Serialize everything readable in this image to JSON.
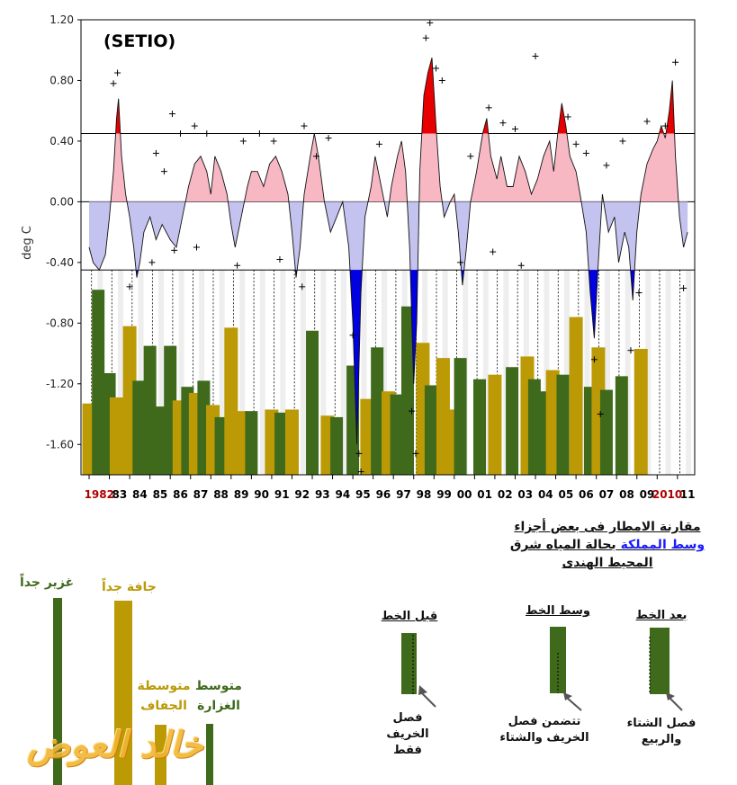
{
  "colors": {
    "dry": "#bb9a06",
    "wet": "#3f6a1c",
    "strong_warm": "#e80000",
    "warm_fill": "#f7b8c4",
    "cool_fill": "#c4c2ee",
    "strong_cool": "#0000e0"
  },
  "chart_data": {
    "type": "bar+line",
    "title": "(SETIO)",
    "ylabel": "deg C",
    "ylim": [
      -1.8,
      1.2
    ],
    "yticks": [
      "1.20",
      "0.80",
      "0.40",
      "0.00",
      "-0.40",
      "-0.80",
      "-1.20",
      "-1.60"
    ],
    "thresholds": [
      0.45,
      0.0,
      -0.45
    ],
    "xlabels": [
      {
        "label": "1982",
        "year": 1982,
        "color": "#b00000"
      },
      {
        "label": "83",
        "year": 1983
      },
      {
        "label": "84",
        "year": 1984
      },
      {
        "label": "85",
        "year": 1985
      },
      {
        "label": "86",
        "year": 1986
      },
      {
        "label": "87",
        "year": 1987
      },
      {
        "label": "88",
        "year": 1988
      },
      {
        "label": "89",
        "year": 1989
      },
      {
        "label": "90",
        "year": 1990
      },
      {
        "label": "91",
        "year": 1991
      },
      {
        "label": "92",
        "year": 1992
      },
      {
        "label": "93",
        "year": 1993
      },
      {
        "label": "94",
        "year": 1994
      },
      {
        "label": "95",
        "year": 1995
      },
      {
        "label": "96",
        "year": 1996
      },
      {
        "label": "97",
        "year": 1997
      },
      {
        "label": "98",
        "year": 1998
      },
      {
        "label": "99",
        "year": 1999
      },
      {
        "label": "00",
        "year": 2000
      },
      {
        "label": "01",
        "year": 2001
      },
      {
        "label": "02",
        "year": 2002
      },
      {
        "label": "03",
        "year": 2003
      },
      {
        "label": "04",
        "year": 2004
      },
      {
        "label": "05",
        "year": 2005
      },
      {
        "label": "06",
        "year": 2006
      },
      {
        "label": "07",
        "year": 2007
      },
      {
        "label": "08",
        "year": 2008
      },
      {
        "label": "09",
        "year": 2009
      },
      {
        "label": "2010",
        "year": 2010,
        "color": "#b00000"
      },
      {
        "label": "11",
        "year": 2011
      }
    ],
    "sst_index": [
      [
        1982.0,
        -0.3
      ],
      [
        1982.2,
        -0.4
      ],
      [
        1982.5,
        -0.45
      ],
      [
        1982.8,
        -0.35
      ],
      [
        1983.0,
        -0.1
      ],
      [
        1983.2,
        0.2
      ],
      [
        1983.35,
        0.55
      ],
      [
        1983.45,
        0.68
      ],
      [
        1983.6,
        0.3
      ],
      [
        1983.8,
        0.05
      ],
      [
        1984.0,
        -0.1
      ],
      [
        1984.2,
        -0.3
      ],
      [
        1984.35,
        -0.5
      ],
      [
        1984.5,
        -0.4
      ],
      [
        1984.7,
        -0.2
      ],
      [
        1985.0,
        -0.1
      ],
      [
        1985.3,
        -0.25
      ],
      [
        1985.6,
        -0.15
      ],
      [
        1986.0,
        -0.25
      ],
      [
        1986.3,
        -0.3
      ],
      [
        1986.6,
        -0.1
      ],
      [
        1986.9,
        0.1
      ],
      [
        1987.2,
        0.25
      ],
      [
        1987.5,
        0.3
      ],
      [
        1987.8,
        0.2
      ],
      [
        1988.0,
        0.05
      ],
      [
        1988.2,
        0.3
      ],
      [
        1988.5,
        0.2
      ],
      [
        1988.8,
        0.05
      ],
      [
        1989.0,
        -0.15
      ],
      [
        1989.2,
        -0.3
      ],
      [
        1989.5,
        -0.1
      ],
      [
        1989.8,
        0.1
      ],
      [
        1990.0,
        0.2
      ],
      [
        1990.3,
        0.2
      ],
      [
        1990.6,
        0.1
      ],
      [
        1990.9,
        0.25
      ],
      [
        1991.2,
        0.3
      ],
      [
        1991.5,
        0.2
      ],
      [
        1991.8,
        0.05
      ],
      [
        1992.0,
        -0.2
      ],
      [
        1992.2,
        -0.5
      ],
      [
        1992.4,
        -0.3
      ],
      [
        1992.6,
        0.05
      ],
      [
        1992.9,
        0.3
      ],
      [
        1993.1,
        0.45
      ],
      [
        1993.3,
        0.3
      ],
      [
        1993.6,
        0.0
      ],
      [
        1993.9,
        -0.2
      ],
      [
        1994.2,
        -0.1
      ],
      [
        1994.5,
        0.0
      ],
      [
        1994.8,
        -0.3
      ],
      [
        1995.0,
        -0.8
      ],
      [
        1995.2,
        -1.6
      ],
      [
        1995.4,
        -0.6
      ],
      [
        1995.6,
        -0.1
      ],
      [
        1995.9,
        0.1
      ],
      [
        1996.1,
        0.3
      ],
      [
        1996.4,
        0.1
      ],
      [
        1996.7,
        -0.1
      ],
      [
        1996.9,
        0.1
      ],
      [
        1997.2,
        0.3
      ],
      [
        1997.4,
        0.4
      ],
      [
        1997.6,
        0.2
      ],
      [
        1997.8,
        -0.3
      ],
      [
        1998.0,
        -1.2
      ],
      [
        1998.15,
        -0.8
      ],
      [
        1998.3,
        0.2
      ],
      [
        1998.5,
        0.7
      ],
      [
        1998.7,
        0.85
      ],
      [
        1998.9,
        0.95
      ],
      [
        1999.1,
        0.5
      ],
      [
        1999.3,
        0.1
      ],
      [
        1999.5,
        -0.1
      ],
      [
        1999.8,
        0.0
      ],
      [
        2000.0,
        0.05
      ],
      [
        2000.2,
        -0.2
      ],
      [
        2000.4,
        -0.55
      ],
      [
        2000.6,
        -0.3
      ],
      [
        2000.8,
        0.0
      ],
      [
        2001.1,
        0.2
      ],
      [
        2001.4,
        0.45
      ],
      [
        2001.6,
        0.55
      ],
      [
        2001.8,
        0.3
      ],
      [
        2002.1,
        0.15
      ],
      [
        2002.3,
        0.3
      ],
      [
        2002.6,
        0.1
      ],
      [
        2002.9,
        0.1
      ],
      [
        2003.2,
        0.3
      ],
      [
        2003.5,
        0.2
      ],
      [
        2003.8,
        0.05
      ],
      [
        2004.1,
        0.15
      ],
      [
        2004.4,
        0.3
      ],
      [
        2004.7,
        0.4
      ],
      [
        2004.9,
        0.2
      ],
      [
        2005.1,
        0.45
      ],
      [
        2005.3,
        0.65
      ],
      [
        2005.5,
        0.5
      ],
      [
        2005.7,
        0.3
      ],
      [
        2006.0,
        0.2
      ],
      [
        2006.2,
        0.05
      ],
      [
        2006.5,
        -0.2
      ],
      [
        2006.7,
        -0.6
      ],
      [
        2006.9,
        -0.9
      ],
      [
        2007.1,
        -0.4
      ],
      [
        2007.3,
        0.05
      ],
      [
        2007.6,
        -0.2
      ],
      [
        2007.9,
        -0.1
      ],
      [
        2008.1,
        -0.4
      ],
      [
        2008.4,
        -0.2
      ],
      [
        2008.6,
        -0.3
      ],
      [
        2008.8,
        -0.65
      ],
      [
        2009.0,
        -0.2
      ],
      [
        2009.2,
        0.05
      ],
      [
        2009.5,
        0.25
      ],
      [
        2009.8,
        0.35
      ],
      [
        2010.0,
        0.4
      ],
      [
        2010.2,
        0.5
      ],
      [
        2010.4,
        0.42
      ],
      [
        2010.6,
        0.6
      ],
      [
        2010.75,
        0.8
      ],
      [
        2010.9,
        0.3
      ],
      [
        2011.1,
        -0.1
      ],
      [
        2011.3,
        -0.3
      ],
      [
        2011.5,
        -0.2
      ]
    ],
    "rain_bars": [
      {
        "year": 1982,
        "class": "dry",
        "value": -1.33
      },
      {
        "year": 1982.45,
        "class": "wet",
        "value": -0.58
      },
      {
        "year": 1983,
        "class": "wet",
        "value": -1.13
      },
      {
        "year": 1983.35,
        "class": "dry",
        "value": -1.29
      },
      {
        "year": 1984,
        "class": "dry",
        "value": -0.82
      },
      {
        "year": 1984.45,
        "class": "wet",
        "value": -1.18
      },
      {
        "year": 1985,
        "class": "wet",
        "value": -0.95
      },
      {
        "year": 1985.6,
        "class": "wet",
        "value": -1.35
      },
      {
        "year": 1986,
        "class": "wet",
        "value": -0.95
      },
      {
        "year": 1986.45,
        "class": "dry",
        "value": -1.31
      },
      {
        "year": 1986.85,
        "class": "wet",
        "value": -1.22
      },
      {
        "year": 1987.25,
        "class": "dry",
        "value": -1.26
      },
      {
        "year": 1987.65,
        "class": "wet",
        "value": -1.18
      },
      {
        "year": 1988.1,
        "class": "dry",
        "value": -1.34
      },
      {
        "year": 1988.5,
        "class": "wet",
        "value": -1.42
      },
      {
        "year": 1989,
        "class": "dry",
        "value": -0.83
      },
      {
        "year": 1989.45,
        "class": "dry",
        "value": -1.38
      },
      {
        "year": 1990,
        "class": "wet",
        "value": -1.38
      },
      {
        "year": 1991,
        "class": "dry",
        "value": -1.37
      },
      {
        "year": 1991.45,
        "class": "wet",
        "value": -1.39
      },
      {
        "year": 1992,
        "class": "dry",
        "value": -1.37
      },
      {
        "year": 1993,
        "class": "wet",
        "value": -0.85
      },
      {
        "year": 1993.75,
        "class": "dry",
        "value": -1.41
      },
      {
        "year": 1994.2,
        "class": "wet",
        "value": -1.42
      },
      {
        "year": 1995,
        "class": "wet",
        "value": -1.08
      },
      {
        "year": 1995.7,
        "class": "dry",
        "value": -1.3
      },
      {
        "year": 1996.2,
        "class": "wet",
        "value": -0.96
      },
      {
        "year": 1996.75,
        "class": "dry",
        "value": -1.25
      },
      {
        "year": 1997.15,
        "class": "wet",
        "value": -1.27
      },
      {
        "year": 1997.7,
        "class": "wet",
        "value": -0.69
      },
      {
        "year": 1998.45,
        "class": "dry",
        "value": -0.93
      },
      {
        "year": 1998.85,
        "class": "wet",
        "value": -1.21
      },
      {
        "year": 1999.45,
        "class": "dry",
        "value": -1.03
      },
      {
        "year": 1999.85,
        "class": "dry",
        "value": -1.37
      },
      {
        "year": 2000.3,
        "class": "wet",
        "value": -1.03
      },
      {
        "year": 2001.25,
        "class": "wet",
        "value": -1.17
      },
      {
        "year": 2002,
        "class": "dry",
        "value": -1.14
      },
      {
        "year": 2002.85,
        "class": "wet",
        "value": -1.09
      },
      {
        "year": 2003.6,
        "class": "dry",
        "value": -1.02
      },
      {
        "year": 2003.95,
        "class": "wet",
        "value": -1.17
      },
      {
        "year": 2004.55,
        "class": "wet",
        "value": -1.25
      },
      {
        "year": 2004.85,
        "class": "dry",
        "value": -1.11
      },
      {
        "year": 2005.35,
        "class": "wet",
        "value": -1.14
      },
      {
        "year": 2006,
        "class": "dry",
        "value": -0.76
      },
      {
        "year": 2006.7,
        "class": "wet",
        "value": -1.22
      },
      {
        "year": 2007.1,
        "class": "dry",
        "value": -0.96
      },
      {
        "year": 2007.5,
        "class": "wet",
        "value": -1.24
      },
      {
        "year": 2008.25,
        "class": "wet",
        "value": -1.15
      },
      {
        "year": 2009.2,
        "class": "dry",
        "value": -0.97
      }
    ],
    "markers_sample": [
      [
        1983.4,
        0.85
      ],
      [
        1983.2,
        0.78
      ],
      [
        1985.3,
        0.32
      ],
      [
        1985.7,
        0.2
      ],
      [
        1986.1,
        0.58
      ],
      [
        1986.5,
        0.45
      ],
      [
        1987.2,
        0.5
      ],
      [
        1987.8,
        0.45
      ],
      [
        1989.6,
        0.4
      ],
      [
        1990.4,
        0.45
      ],
      [
        1991.1,
        0.4
      ],
      [
        1992.6,
        0.5
      ],
      [
        1993.2,
        0.3
      ],
      [
        1993.8,
        0.42
      ],
      [
        1996.3,
        0.38
      ],
      [
        1998.6,
        1.08
      ],
      [
        1998.8,
        1.18
      ],
      [
        1999.1,
        0.88
      ],
      [
        1999.4,
        0.8
      ],
      [
        2000.8,
        0.3
      ],
      [
        2001.7,
        0.62
      ],
      [
        2002.4,
        0.52
      ],
      [
        2003.0,
        0.48
      ],
      [
        2004.0,
        0.96
      ],
      [
        2005.6,
        0.56
      ],
      [
        2006.0,
        0.38
      ],
      [
        2006.5,
        0.32
      ],
      [
        2007.5,
        0.24
      ],
      [
        2008.3,
        0.4
      ],
      [
        2009.5,
        0.53
      ],
      [
        2010.4,
        0.5
      ],
      [
        2010.9,
        0.92
      ],
      [
        1984.0,
        -0.56
      ],
      [
        1985.1,
        -0.4
      ],
      [
        1986.2,
        -0.32
      ],
      [
        1987.3,
        -0.3
      ],
      [
        1989.3,
        -0.42
      ],
      [
        1991.4,
        -0.38
      ],
      [
        1992.5,
        -0.56
      ],
      [
        1995.0,
        -0.88
      ],
      [
        1995.3,
        -1.66
      ],
      [
        1995.4,
        -1.78
      ],
      [
        1997.9,
        -1.38
      ],
      [
        1998.1,
        -1.66
      ],
      [
        2000.3,
        -0.4
      ],
      [
        2001.9,
        -0.33
      ],
      [
        2003.3,
        -0.42
      ],
      [
        2006.9,
        -1.04
      ],
      [
        2007.2,
        -1.4
      ],
      [
        2008.7,
        -0.98
      ],
      [
        2009.1,
        -0.6
      ],
      [
        2011.3,
        -0.57
      ]
    ]
  },
  "caption": {
    "line1": "مقارنة الامطار فى بعض أجزاء",
    "line2_link": "وسط المملكة",
    "line2_rest": "بحالة المياه شرق",
    "line3": "المحيط الهندى"
  },
  "intensity_legend": {
    "very_wet": "غزير جداً",
    "very_dry": "جافة جداً",
    "medium_dry": "متوسطة الجفاف",
    "medium_wet": "متوسط الغزارة"
  },
  "timing_legend": {
    "before": {
      "title": "قبل الخط",
      "desc": "فصل الخريف فقط"
    },
    "middle": {
      "title": "وسط الخط",
      "desc": "تتضمن فصل الخريف والشتاء"
    },
    "after": {
      "title": "بعد الخط",
      "desc": "فصل الشتاء والربيع"
    }
  },
  "watermark": "خالد العوض"
}
